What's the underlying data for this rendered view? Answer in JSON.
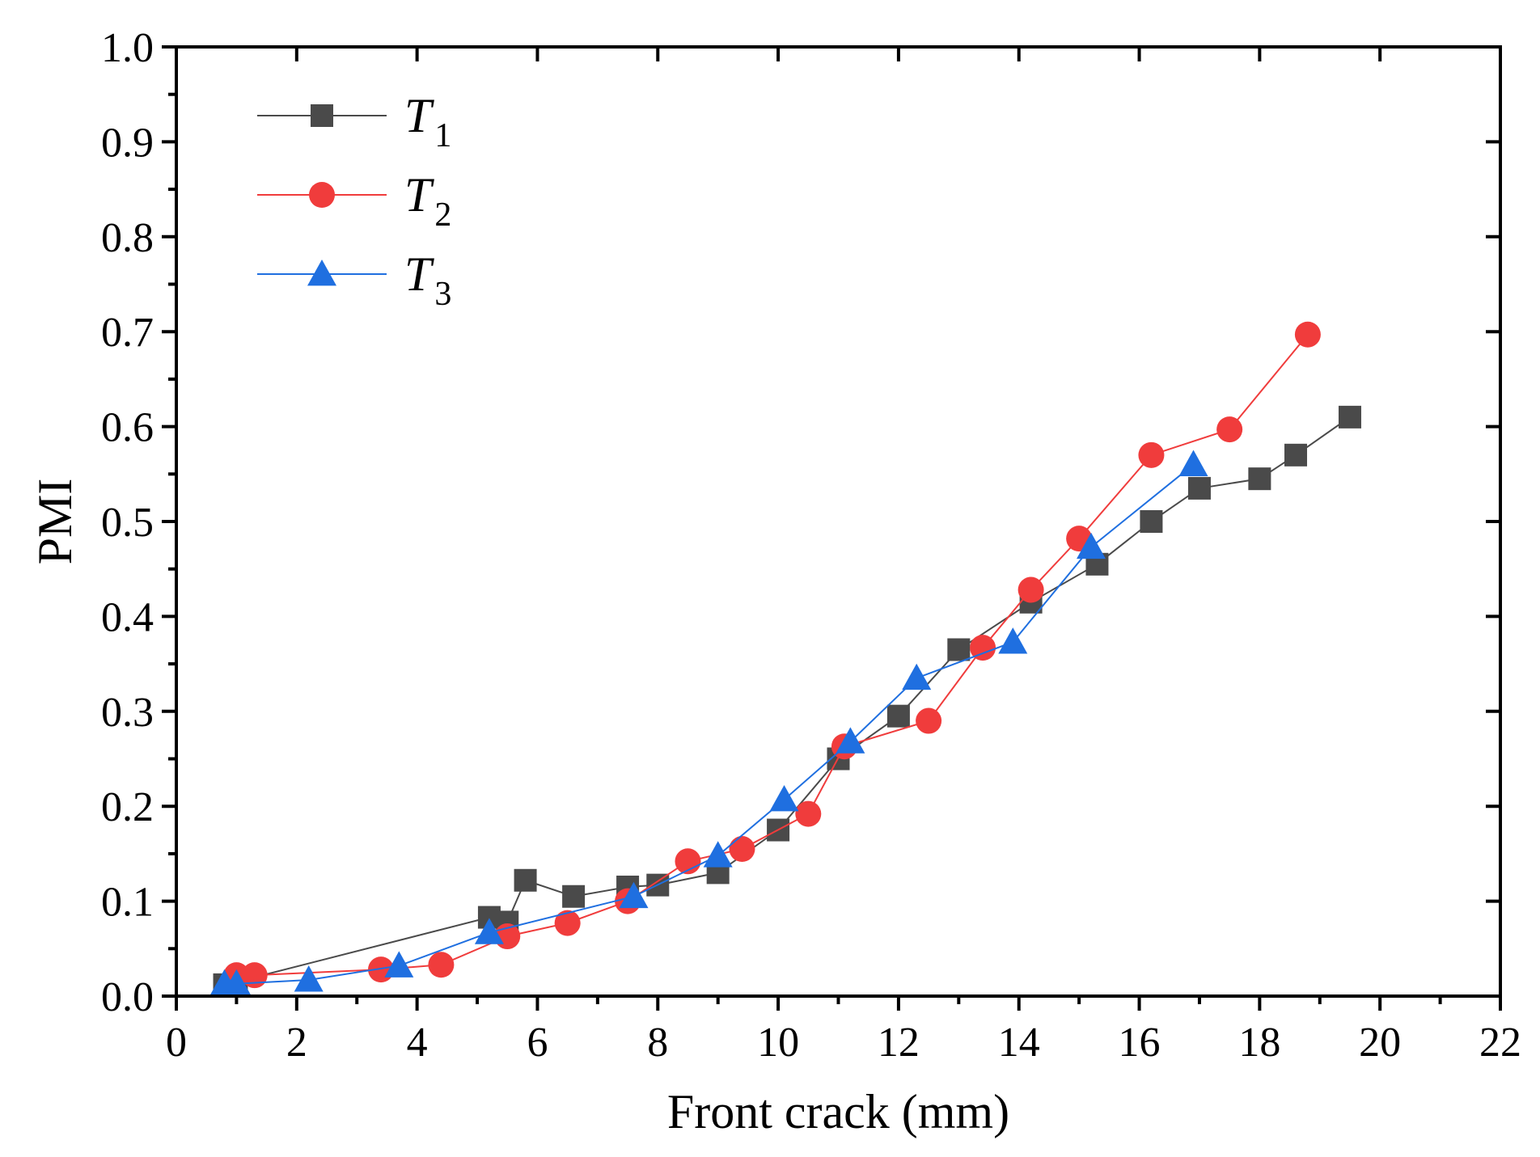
{
  "chart_data": {
    "type": "line",
    "title": "",
    "xlabel": "Front crack (mm)",
    "ylabel": "PMI",
    "xlim": [
      0,
      22
    ],
    "ylim": [
      0,
      1.0
    ],
    "xticks": [
      0,
      2,
      4,
      6,
      8,
      10,
      12,
      14,
      16,
      18,
      20,
      22
    ],
    "yticks": [
      0.0,
      0.1,
      0.2,
      0.3,
      0.4,
      0.5,
      0.6,
      0.7,
      0.8,
      0.9,
      1.0
    ],
    "x_tick_labels": [
      "0",
      "2",
      "4",
      "6",
      "8",
      "10",
      "12",
      "14",
      "16",
      "18",
      "20",
      "22"
    ],
    "y_tick_labels": [
      "0.0",
      "0.1",
      "0.2",
      "0.3",
      "0.4",
      "0.5",
      "0.6",
      "0.7",
      "0.8",
      "0.9",
      "1.0"
    ],
    "legend_position": "top-left",
    "grid": false,
    "series": [
      {
        "name": "T1",
        "legend_main": "T",
        "legend_sub": "1",
        "color": "#4a4a4a",
        "marker": "square",
        "x": [
          0.8,
          1.0,
          5.2,
          5.5,
          5.8,
          6.6,
          7.5,
          8.0,
          9.0,
          10.0,
          11.0,
          12.0,
          13.0,
          14.2,
          15.3,
          16.2,
          17.0,
          18.0,
          18.6,
          19.5
        ],
        "y": [
          0.012,
          0.015,
          0.083,
          0.078,
          0.122,
          0.105,
          0.115,
          0.117,
          0.13,
          0.175,
          0.25,
          0.295,
          0.365,
          0.415,
          0.455,
          0.5,
          0.535,
          0.545,
          0.57,
          0.61
        ]
      },
      {
        "name": "T2",
        "legend_main": "T",
        "legend_sub": "2",
        "color": "#f03c3c",
        "marker": "circle",
        "x": [
          1.0,
          1.3,
          3.4,
          4.4,
          5.5,
          6.5,
          7.5,
          8.5,
          9.4,
          10.5,
          11.1,
          12.5,
          13.4,
          14.2,
          15.0,
          16.2,
          17.5,
          18.8
        ],
        "y": [
          0.022,
          0.022,
          0.028,
          0.033,
          0.063,
          0.077,
          0.1,
          0.142,
          0.155,
          0.192,
          0.263,
          0.29,
          0.367,
          0.428,
          0.482,
          0.57,
          0.597,
          0.697
        ]
      },
      {
        "name": "T3",
        "legend_main": "T",
        "legend_sub": "3",
        "color": "#1f6fe0",
        "marker": "triangle",
        "x": [
          0.8,
          1.0,
          2.2,
          3.7,
          5.2,
          7.6,
          9.0,
          10.1,
          11.2,
          12.3,
          13.9,
          15.2,
          16.9
        ],
        "y": [
          0.013,
          0.013,
          0.017,
          0.032,
          0.067,
          0.105,
          0.148,
          0.207,
          0.268,
          0.335,
          0.373,
          0.473,
          0.56
        ]
      }
    ]
  }
}
